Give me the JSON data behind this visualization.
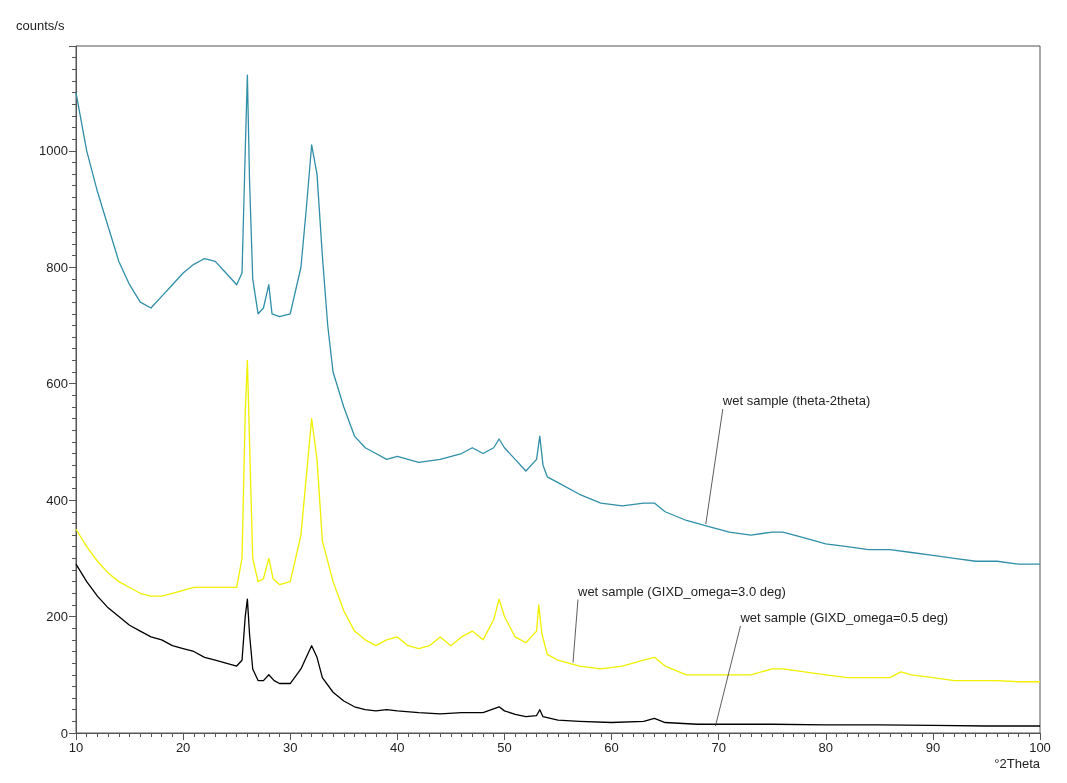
{
  "chart_data": {
    "type": "line",
    "xlabel": "°2Theta",
    "ylabel": "counts/s",
    "xlim": [
      10,
      100
    ],
    "ylim": [
      0,
      1180
    ],
    "xticks": [
      10,
      20,
      30,
      40,
      50,
      60,
      70,
      80,
      90,
      100
    ],
    "yticks": [
      0,
      200,
      400,
      600,
      800,
      1000
    ],
    "grid": false,
    "marker": "none",
    "line_style": "solid",
    "series": [
      {
        "color": "#2f8fa8",
        "x": [
          10,
          11,
          12,
          13,
          14,
          15,
          16,
          17,
          18,
          19,
          20,
          21,
          22,
          23,
          24,
          25,
          25.5,
          25.8,
          26,
          26.2,
          26.5,
          27,
          27.5,
          28,
          28.3,
          29,
          30,
          31,
          31.5,
          32,
          32.5,
          33,
          33.5,
          34,
          35,
          36,
          37,
          38,
          39,
          40,
          42,
          44,
          46,
          47,
          48,
          49,
          49.5,
          50,
          51,
          52,
          53,
          53.3,
          53.6,
          54,
          55,
          57,
          59,
          61,
          63,
          64,
          65,
          67,
          69,
          71,
          73,
          75,
          76,
          78,
          80,
          82,
          84,
          86,
          88,
          90,
          92,
          94,
          96,
          98,
          100
        ],
        "values": [
          1100,
          1000,
          930,
          870,
          810,
          770,
          740,
          730,
          750,
          770,
          790,
          805,
          815,
          810,
          790,
          770,
          790,
          1000,
          1130,
          950,
          780,
          720,
          730,
          770,
          720,
          715,
          720,
          800,
          900,
          1010,
          960,
          820,
          700,
          620,
          560,
          510,
          490,
          480,
          470,
          475,
          465,
          470,
          480,
          490,
          480,
          490,
          505,
          490,
          470,
          450,
          470,
          510,
          460,
          440,
          430,
          410,
          395,
          390,
          395,
          395,
          380,
          365,
          355,
          345,
          340,
          345,
          345,
          335,
          325,
          320,
          315,
          315,
          310,
          305,
          300,
          295,
          295,
          290,
          290
        ]
      },
      {
        "color": "#f0f000",
        "x": [
          10,
          11,
          12,
          13,
          14,
          15,
          16,
          17,
          18,
          19,
          20,
          21,
          22,
          23,
          24,
          25,
          25.5,
          25.8,
          26,
          26.2,
          26.5,
          27,
          27.5,
          28,
          28.4,
          29,
          30,
          31,
          31.5,
          32,
          32.5,
          33,
          34,
          35,
          36,
          37,
          38,
          39,
          40,
          41,
          42,
          43,
          44,
          45,
          46,
          47,
          48,
          49,
          49.5,
          50,
          51,
          52,
          53,
          53.2,
          53.5,
          54,
          55,
          57,
          59,
          61,
          63,
          64,
          65,
          67,
          69,
          71,
          73,
          75,
          76,
          78,
          80,
          82,
          84,
          86,
          87,
          88,
          90,
          92,
          94,
          96,
          98,
          100
        ],
        "values": [
          350,
          320,
          295,
          275,
          260,
          250,
          240,
          235,
          235,
          240,
          245,
          250,
          250,
          250,
          250,
          250,
          300,
          550,
          640,
          500,
          300,
          260,
          265,
          300,
          265,
          255,
          260,
          340,
          440,
          540,
          470,
          330,
          260,
          210,
          175,
          160,
          150,
          160,
          165,
          150,
          145,
          150,
          165,
          150,
          165,
          175,
          160,
          195,
          230,
          200,
          165,
          155,
          175,
          220,
          170,
          135,
          125,
          115,
          110,
          115,
          125,
          130,
          115,
          100,
          100,
          100,
          100,
          110,
          110,
          105,
          100,
          95,
          95,
          95,
          105,
          100,
          95,
          90,
          90,
          90,
          88,
          88
        ]
      },
      {
        "color": "#000000",
        "x": [
          10,
          11,
          12,
          13,
          14,
          15,
          16,
          17,
          18,
          19,
          20,
          21,
          22,
          23,
          24,
          25,
          25.5,
          25.8,
          26,
          26.2,
          26.5,
          27,
          27.5,
          28,
          28.5,
          29,
          30,
          31,
          31.5,
          32,
          32.5,
          33,
          34,
          35,
          36,
          37,
          38,
          39,
          40,
          42,
          44,
          46,
          48,
          49.5,
          50,
          51,
          52,
          53,
          53.3,
          53.6,
          55,
          57,
          60,
          63,
          64,
          65,
          68,
          70,
          75,
          80,
          85,
          90,
          95,
          100
        ],
        "values": [
          290,
          260,
          235,
          215,
          200,
          185,
          175,
          165,
          160,
          150,
          145,
          140,
          130,
          125,
          120,
          115,
          125,
          200,
          230,
          170,
          110,
          90,
          90,
          100,
          90,
          85,
          85,
          110,
          130,
          150,
          130,
          95,
          70,
          55,
          45,
          40,
          38,
          40,
          38,
          35,
          33,
          35,
          35,
          45,
          38,
          32,
          28,
          30,
          40,
          28,
          22,
          20,
          18,
          20,
          25,
          18,
          15,
          15,
          15,
          14,
          14,
          13,
          12,
          12
        ]
      }
    ],
    "annotations": [
      {
        "text": "wet sample (theta-2theta)",
        "x": 68.8,
        "y": 359
      },
      {
        "text": "wet sample (GIXD_omega=3.0 deg)",
        "x": 56.4,
        "y": 121
      },
      {
        "text": "wet sample (GIXD_omega=0.5 deg)",
        "x": 69.7,
        "y": 12
      }
    ]
  }
}
